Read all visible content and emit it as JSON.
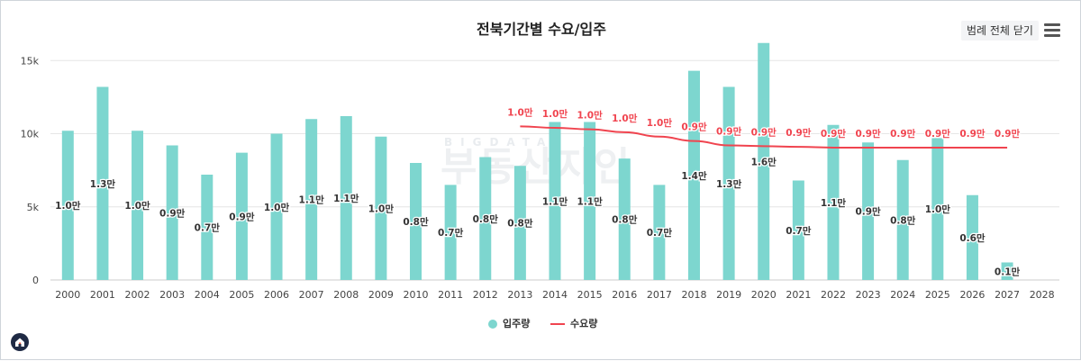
{
  "title": "전북기간별 수요/입주",
  "legend_toggle": "범례 전체 닫기",
  "watermark_top": "BIGDATA",
  "watermark": "부동산지인",
  "colors": {
    "bar": "#7dd6cf",
    "line": "#f0444f",
    "grid": "#e6e6e6",
    "axis_text": "#444444"
  },
  "chart_data": {
    "type": "bar",
    "title": "전북기간별 수요/입주",
    "categories": [
      "2000",
      "2001",
      "2002",
      "2003",
      "2004",
      "2005",
      "2006",
      "2007",
      "2008",
      "2009",
      "2010",
      "2011",
      "2012",
      "2013",
      "2014",
      "2015",
      "2016",
      "2017",
      "2018",
      "2019",
      "2020",
      "2021",
      "2022",
      "2023",
      "2024",
      "2025",
      "2026",
      "2027",
      "2028"
    ],
    "y_ticks": [
      {
        "value": 0,
        "label": "0"
      },
      {
        "value": 5000,
        "label": "5k"
      },
      {
        "value": 10000,
        "label": "10k"
      },
      {
        "value": 15000,
        "label": "15k"
      }
    ],
    "ylim": [
      0,
      16000
    ],
    "series": [
      {
        "name": "입주량",
        "kind": "bar",
        "values": [
          10200,
          13200,
          10200,
          9200,
          7200,
          8700,
          10000,
          11000,
          11200,
          9800,
          8000,
          6500,
          8400,
          7800,
          10800,
          10800,
          8300,
          6500,
          14300,
          13200,
          16200,
          6800,
          10600,
          9400,
          8200,
          9700,
          5800,
          1200,
          0
        ],
        "labels": [
          "1.0만",
          "1.3만",
          "1.0만",
          "0.9만",
          "0.7만",
          "0.9만",
          "1.0만",
          "1.1만",
          "1.1만",
          "1.0만",
          "0.8만",
          "0.7만",
          "0.8만",
          "0.8만",
          "1.1만",
          "1.1만",
          "0.8만",
          "0.7만",
          "1.4만",
          "1.3만",
          "1.6만",
          "0.7만",
          "1.1만",
          "0.9만",
          "0.8만",
          "1.0만",
          "0.6만",
          "0.1만",
          ""
        ]
      },
      {
        "name": "수요량",
        "kind": "line",
        "values": [
          null,
          null,
          null,
          null,
          null,
          null,
          null,
          null,
          null,
          null,
          null,
          null,
          null,
          10500,
          10400,
          10300,
          10100,
          9800,
          9500,
          9200,
          9150,
          9100,
          9050,
          9050,
          9050,
          9050,
          9050,
          9050,
          null
        ],
        "labels": [
          "",
          "",
          "",
          "",
          "",
          "",
          "",
          "",
          "",
          "",
          "",
          "",
          "",
          "1.0만",
          "1.0만",
          "1.0만",
          "1.0만",
          "1.0만",
          "0.9만",
          "0.9만",
          "0.9만",
          "0.9만",
          "0.9만",
          "0.9만",
          "0.9만",
          "0.9만",
          "0.9만",
          "0.9만",
          ""
        ]
      }
    ],
    "legend": [
      {
        "name": "입주량",
        "marker": "circle",
        "color": "#7dd6cf"
      },
      {
        "name": "수요량",
        "marker": "line",
        "color": "#f0444f"
      }
    ],
    "legend_position": "bottom-center",
    "grid": true
  }
}
